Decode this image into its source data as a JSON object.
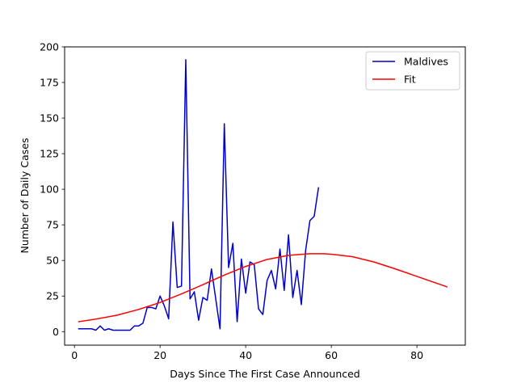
{
  "chart_data": {
    "type": "line",
    "xlabel": "Days Since The First Case Announced",
    "ylabel": "Number of Daily Cases",
    "xlim": [
      -2.3,
      91.3
    ],
    "ylim": [
      -9.5,
      200
    ],
    "xticks": [
      0,
      20,
      40,
      60,
      80
    ],
    "yticks": [
      0,
      25,
      50,
      75,
      100,
      125,
      150,
      175,
      200
    ],
    "grid": false,
    "legend_position": "top-right",
    "series": [
      {
        "name": "Maldives",
        "color": "#0000cc",
        "x": [
          1,
          2,
          3,
          4,
          5,
          6,
          7,
          8,
          9,
          10,
          11,
          12,
          13,
          14,
          15,
          16,
          17,
          18,
          19,
          20,
          21,
          22,
          23,
          24,
          25,
          26,
          27,
          28,
          29,
          30,
          31,
          32,
          33,
          34,
          35,
          36,
          37,
          38,
          39,
          40,
          41,
          42,
          43,
          44,
          45,
          46,
          47,
          48,
          49,
          50,
          51,
          52,
          53,
          54,
          55,
          56,
          57
        ],
        "y": [
          2,
          2,
          2,
          2,
          1,
          4,
          1,
          2,
          1,
          1,
          1,
          1,
          1,
          4,
          4,
          6,
          17,
          17,
          16,
          25,
          18,
          9,
          77,
          31,
          32,
          191,
          23,
          28,
          8,
          24,
          22,
          44,
          23,
          2,
          146,
          45,
          62,
          7,
          51,
          27,
          49,
          47,
          16,
          12,
          36,
          43,
          30,
          58,
          29,
          68,
          24,
          43,
          19,
          57,
          78,
          81,
          101
        ]
      },
      {
        "name": "Fit",
        "color": "#ff0000",
        "x": [
          1,
          5,
          10,
          15,
          20,
          25,
          30,
          35,
          40,
          45,
          50,
          55,
          58,
          60,
          65,
          70,
          75,
          80,
          87
        ],
        "y": [
          7,
          8.8,
          11.6,
          15.6,
          20.5,
          26.5,
          33,
          39.7,
          45.8,
          50.7,
          53.6,
          54.7,
          54.7,
          54.4,
          52.6,
          48.9,
          44,
          38.8,
          31.5
        ]
      }
    ]
  }
}
